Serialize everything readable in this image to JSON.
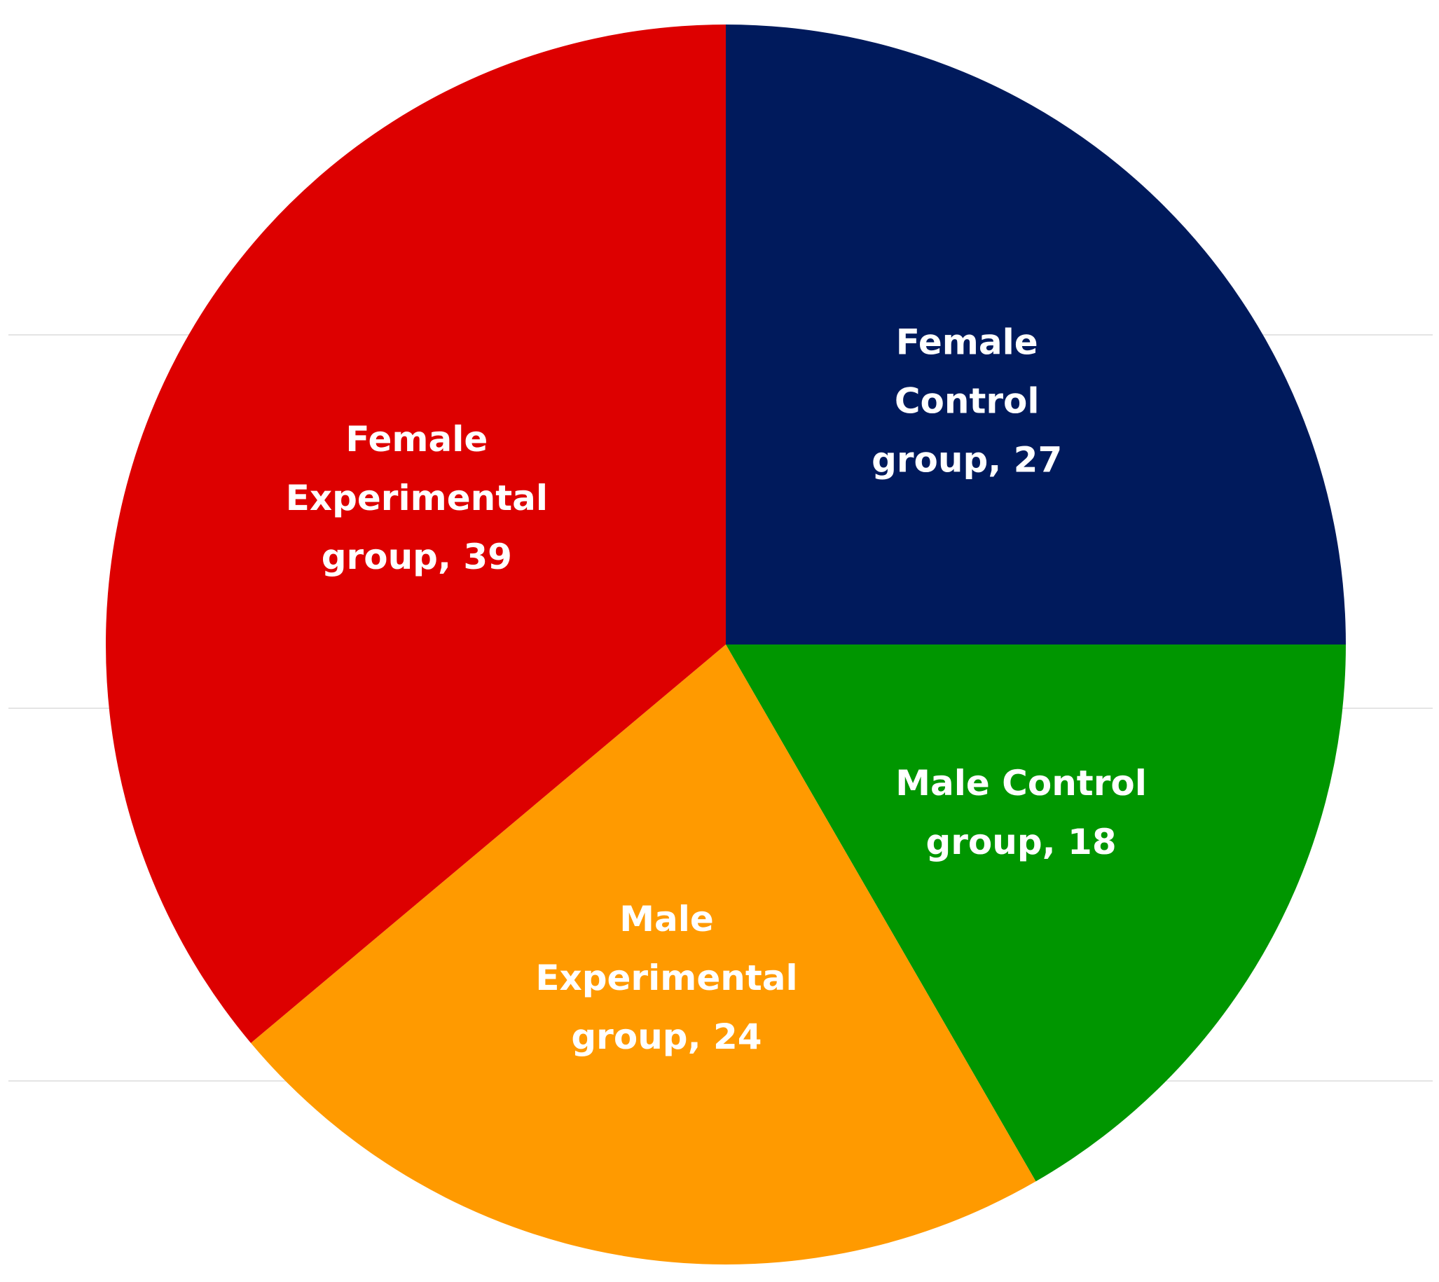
{
  "chart_data": {
    "type": "pie",
    "categories": [
      "Female Control group, 27",
      "Male Control group, 18",
      "Male Experimental group, 24",
      "Female Experimental group, 39"
    ],
    "values": [
      27,
      18,
      24,
      39
    ],
    "colors": [
      "#001a5c",
      "#009600",
      "#ff9a00",
      "#dd0000"
    ]
  }
}
